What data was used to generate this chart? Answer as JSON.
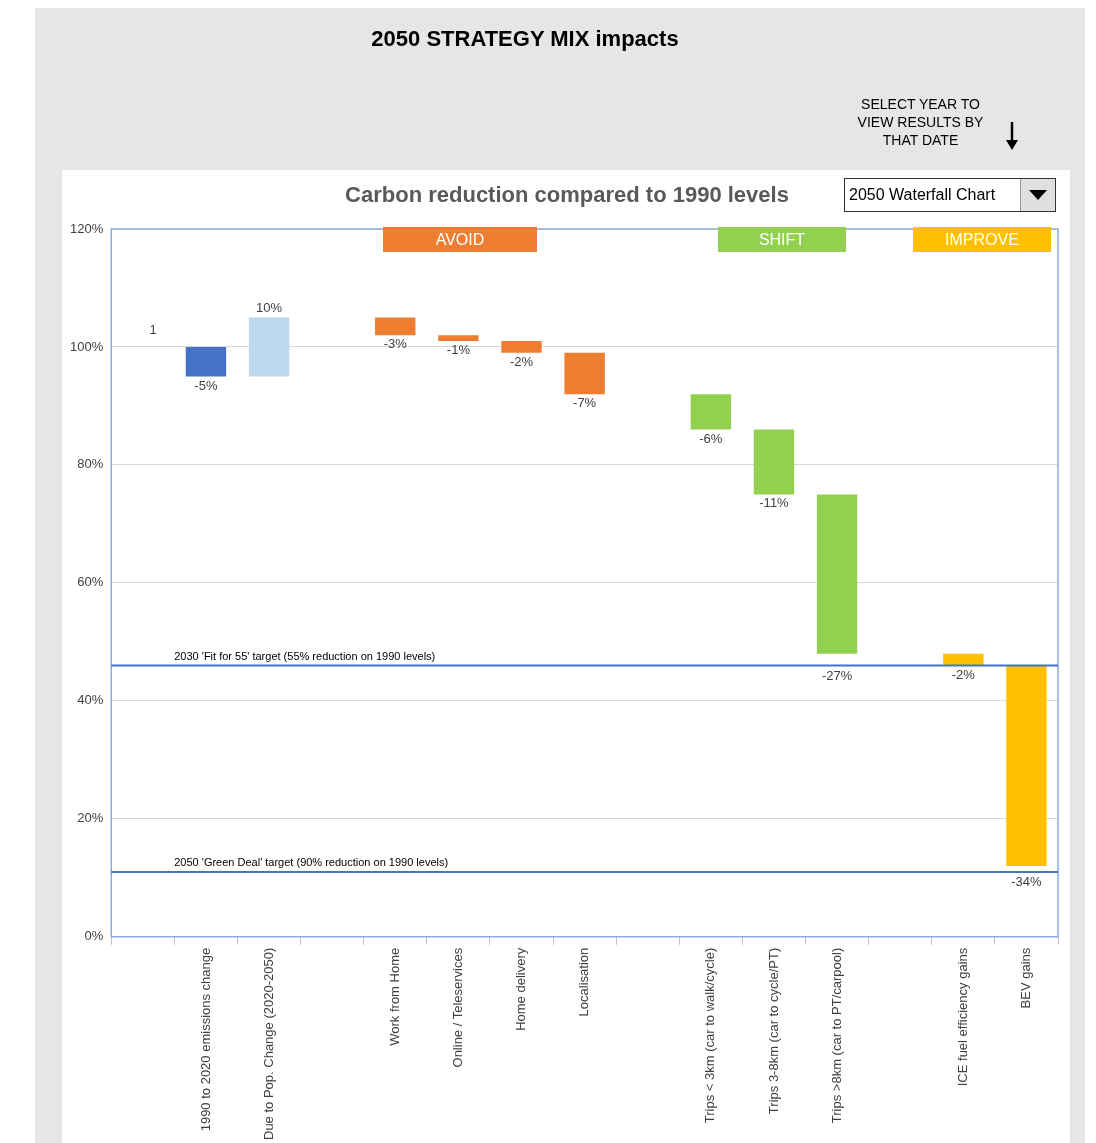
{
  "chart_data": {
    "type": "bar",
    "title": "2050 STRATEGY MIX impacts",
    "subtitle": "Carbon reduction compared to 1990 levels",
    "categories": [
      null,
      "1990 to 2020 emissions change",
      "Due to Pop. Change (2020-2050)",
      null,
      "Work from Home",
      "Online / Teleservices",
      "Home delivery",
      "Localisation",
      null,
      "Trips < 3km (car to walk/cycle)",
      "Trips 3-8km (car to cycle/PT)",
      "Trips >8km (car to PT/carpool)",
      null,
      "ICE fuel efficiency gains",
      "BEV gains"
    ],
    "values": [
      null,
      -5,
      10,
      null,
      -3,
      -1,
      -2,
      -7,
      null,
      -6,
      -11,
      -27,
      null,
      -2,
      -34
    ],
    "base": [
      null,
      100,
      95,
      null,
      105,
      102,
      101,
      99,
      null,
      92,
      86,
      75,
      null,
      48,
      46
    ],
    "colors": [
      null,
      "#4472c4",
      "#bdd7ee",
      null,
      "#ed7d31",
      "#ed7d31",
      "#ed7d31",
      "#ed7d31",
      null,
      "#92d050",
      "#92d050",
      "#92d050",
      null,
      "#ffc000",
      "#ffc000"
    ],
    "value_labels": [
      null,
      "-5%",
      "10%",
      null,
      "-3%",
      "-1%",
      "-2%",
      "-7%",
      null,
      "-6%",
      "-11%",
      "-27%",
      null,
      "-2%",
      "-34%"
    ],
    "ylim": [
      0,
      120
    ],
    "yticks": [
      {
        "value": 0,
        "label": "0%"
      },
      {
        "value": 20,
        "label": "20%"
      },
      {
        "value": 40,
        "label": "40%"
      },
      {
        "value": 60,
        "label": "60%"
      },
      {
        "value": 80,
        "label": "80%"
      },
      {
        "value": 100,
        "label": "100%"
      },
      {
        "value": 120,
        "label": "120%"
      }
    ],
    "ref_lines": [
      {
        "axis": "y",
        "value": 46,
        "label": "2030 'Fit for 55' target (55% reduction on 1990 levels)",
        "color": "#4472c4"
      },
      {
        "axis": "y",
        "value": 11,
        "label": "2050 'Green Deal' target (90% reduction on 1990 levels)",
        "color": "#4472c4"
      }
    ],
    "annotations": [
      "SELECT YEAR TO VIEW RESULTS BY THAT DATE",
      "2050 Waterfall Chart",
      "1",
      "AVOID",
      "SHIFT",
      "IMPROVE"
    ],
    "grid": "y",
    "legend": false
  }
}
